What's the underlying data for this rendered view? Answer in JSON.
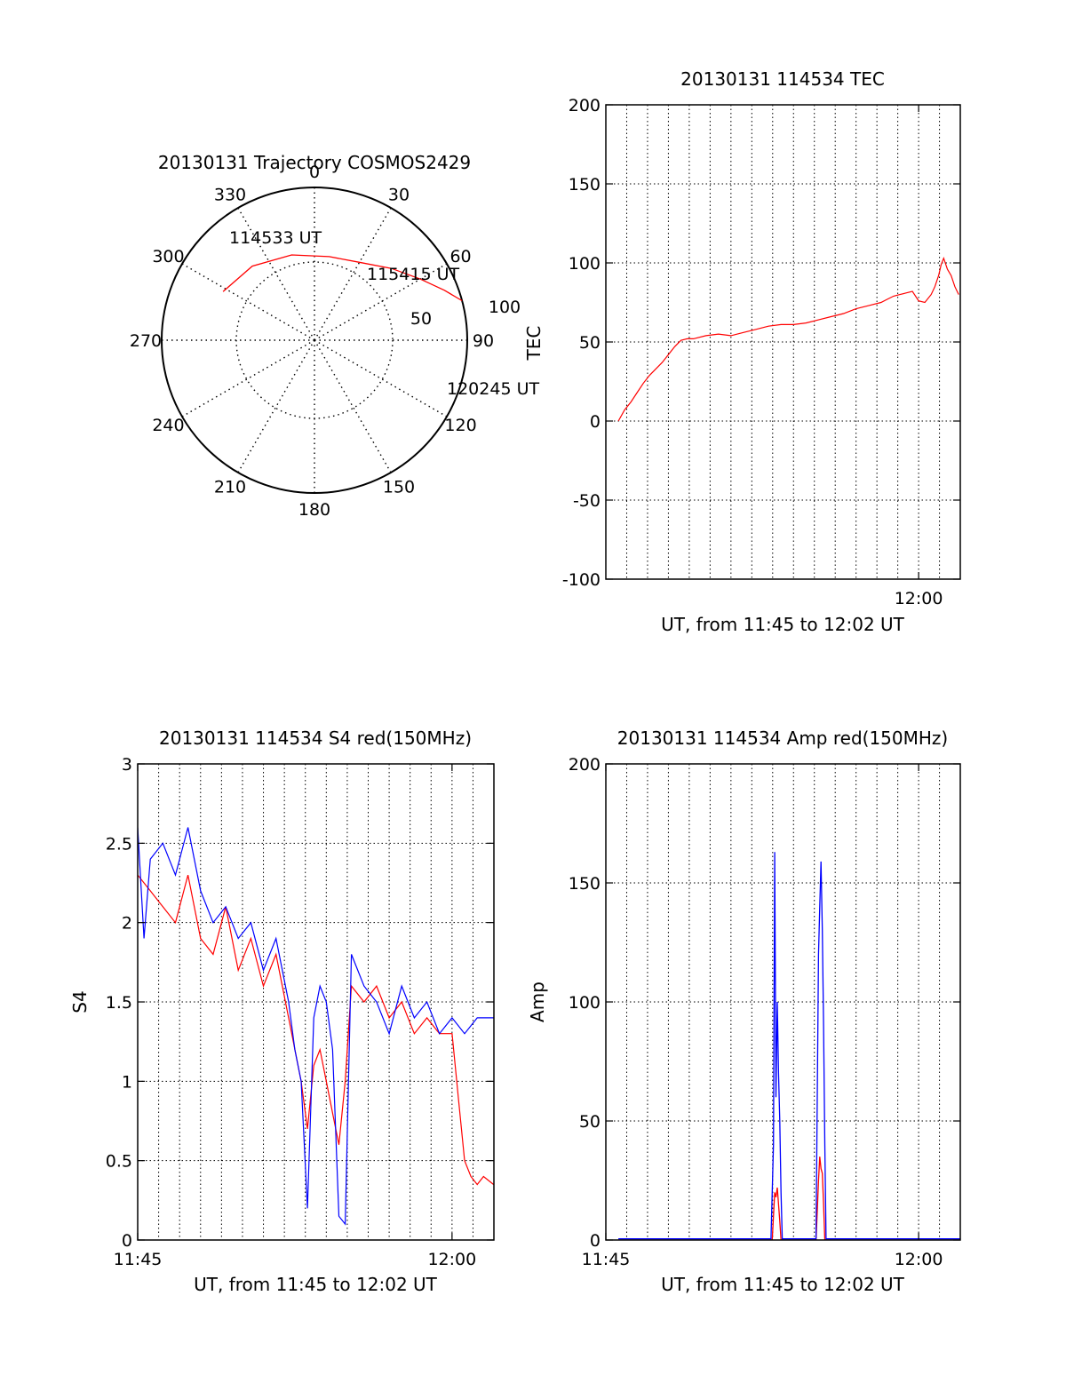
{
  "figure": {
    "colors": {
      "red": "#ff0000",
      "blue": "#0000ff",
      "axis": "#000000",
      "grid": "#000000"
    }
  },
  "chart_data": [
    {
      "type": "polar",
      "title": "20130131 Trajectory COSMOS2429",
      "azimuth_labels": [
        "0",
        "30",
        "60",
        "90",
        "120",
        "150",
        "180",
        "210",
        "240",
        "270",
        "300",
        "330"
      ],
      "radial_labels": [
        "50",
        "100"
      ],
      "radial_ticks_elevation": [
        50,
        100
      ],
      "grid": true,
      "trajectory": {
        "color": "red",
        "points_az_el": [
          [
            -62,
            29
          ],
          [
            -40,
            33
          ],
          [
            -15,
            38
          ],
          [
            10,
            40
          ],
          [
            30,
            37
          ],
          [
            47,
            28
          ],
          [
            60,
            18
          ],
          [
            69,
            8
          ],
          [
            75,
            0
          ]
        ]
      },
      "annotations": [
        {
          "text": "114533 UT",
          "az": -62,
          "el": 29
        },
        {
          "text": "115415 UT",
          "az": 28,
          "el": 36
        },
        {
          "text": "120245 UT",
          "az": 75,
          "el": 0
        }
      ]
    },
    {
      "type": "line",
      "title": "20130131 114534 TEC",
      "xlabel": "UT, from 11:45 to 12:02 UT",
      "ylabel": "TEC",
      "xlim": [
        11.75,
        12.0333
      ],
      "ylim": [
        -100,
        200
      ],
      "yticks": [
        "-100",
        "-50",
        "0",
        "50",
        "100",
        "150",
        "200"
      ],
      "xticks": [
        {
          "value": 12.0,
          "label": "12:00"
        }
      ],
      "grid": true,
      "series": [
        {
          "color": "red",
          "x": [
            11.76,
            11.765,
            11.77,
            11.775,
            11.78,
            11.785,
            11.79,
            11.795,
            11.8,
            11.805,
            11.81,
            11.815,
            11.82,
            11.83,
            11.84,
            11.85,
            11.86,
            11.87,
            11.88,
            11.89,
            11.9,
            11.91,
            11.92,
            11.93,
            11.94,
            11.95,
            11.96,
            11.97,
            11.975,
            11.98,
            11.985,
            11.99,
            11.995,
            12.0,
            12.005,
            12.01,
            12.013,
            12.016,
            12.018,
            12.02,
            12.023,
            12.026,
            12.029,
            12.032
          ],
          "y": [
            0,
            7,
            12,
            18,
            24,
            29,
            33,
            37,
            42,
            47,
            51,
            52,
            52,
            54,
            55,
            54,
            56,
            58,
            60,
            61,
            61,
            62,
            64,
            66,
            68,
            71,
            73,
            75,
            77,
            79,
            80,
            81,
            82,
            76,
            75,
            80,
            85,
            92,
            99,
            103,
            96,
            92,
            85,
            80
          ]
        }
      ]
    },
    {
      "type": "line",
      "title": "20130131 114534 S4 red(150MHz)",
      "xlabel": "UT, from 11:45 to 12:02 UT",
      "ylabel": "S4",
      "xlim": [
        11.75,
        12.0333
      ],
      "ylim": [
        0,
        3
      ],
      "yticks": [
        "0",
        "0.5",
        "1",
        "1.5",
        "2",
        "2.5",
        "3"
      ],
      "xticks": [
        {
          "value": 11.75,
          "label": "11:45"
        },
        {
          "value": 12.0,
          "label": "12:00"
        }
      ],
      "grid": true,
      "series": [
        {
          "color": "red",
          "x": [
            11.75,
            11.76,
            11.77,
            11.78,
            11.79,
            11.8,
            11.81,
            11.82,
            11.83,
            11.84,
            11.85,
            11.86,
            11.87,
            11.88,
            11.885,
            11.89,
            11.895,
            11.9,
            11.905,
            11.91,
            11.915,
            11.92,
            11.93,
            11.94,
            11.95,
            11.96,
            11.97,
            11.98,
            11.99,
            12.0,
            12.005,
            12.01,
            12.015,
            12.02,
            12.025,
            12.033
          ],
          "y": [
            2.3,
            2.2,
            2.1,
            2.0,
            2.3,
            1.9,
            1.8,
            2.1,
            1.7,
            1.9,
            1.6,
            1.8,
            1.4,
            1.0,
            0.7,
            1.1,
            1.2,
            1.0,
            0.8,
            0.6,
            1.0,
            1.6,
            1.5,
            1.6,
            1.4,
            1.5,
            1.3,
            1.4,
            1.3,
            1.3,
            0.9,
            0.5,
            0.4,
            0.35,
            0.4,
            0.35
          ]
        },
        {
          "color": "blue",
          "x": [
            11.75,
            11.755,
            11.76,
            11.77,
            11.78,
            11.79,
            11.8,
            11.81,
            11.82,
            11.83,
            11.84,
            11.85,
            11.86,
            11.87,
            11.875,
            11.88,
            11.885,
            11.89,
            11.895,
            11.9,
            11.905,
            11.91,
            11.915,
            11.92,
            11.93,
            11.94,
            11.95,
            11.96,
            11.97,
            11.98,
            11.99,
            12.0,
            12.01,
            12.02,
            12.033
          ],
          "y": [
            2.6,
            1.9,
            2.4,
            2.5,
            2.3,
            2.6,
            2.2,
            2.0,
            2.1,
            1.9,
            2.0,
            1.7,
            1.9,
            1.5,
            1.2,
            1.0,
            0.2,
            1.4,
            1.6,
            1.5,
            1.2,
            0.15,
            0.1,
            1.8,
            1.6,
            1.5,
            1.3,
            1.6,
            1.4,
            1.5,
            1.3,
            1.4,
            1.3,
            1.4,
            1.4
          ]
        }
      ]
    },
    {
      "type": "line",
      "title": "20130131 114534 Amp red(150MHz)",
      "xlabel": "UT, from 11:45 to 12:02 UT",
      "ylabel": "Amp",
      "xlim": [
        11.75,
        12.0333
      ],
      "ylim": [
        0,
        200
      ],
      "yticks": [
        "0",
        "50",
        "100",
        "150",
        "200"
      ],
      "xticks": [
        {
          "value": 11.75,
          "label": "11:45"
        },
        {
          "value": 12.0,
          "label": "12:00"
        }
      ],
      "grid": true,
      "series": [
        {
          "color": "red",
          "x": [
            11.76,
            11.883,
            11.884,
            11.885,
            11.886,
            11.887,
            11.888,
            11.889,
            11.89,
            11.918,
            11.919,
            11.92,
            11.921,
            11.922,
            11.923,
            11.924,
            11.925,
            12.033
          ],
          "y": [
            0,
            0,
            10,
            20,
            18,
            22,
            15,
            8,
            0,
            0,
            12,
            25,
            35,
            30,
            28,
            15,
            0,
            0
          ]
        },
        {
          "color": "blue",
          "x": [
            11.76,
            11.882,
            11.884,
            11.885,
            11.886,
            11.887,
            11.888,
            11.889,
            11.89,
            11.891,
            11.918,
            11.919,
            11.92,
            11.921,
            11.922,
            11.923,
            11.924,
            11.925,
            11.926,
            12.033
          ],
          "y": [
            0.5,
            0.5,
            40,
            163,
            60,
            100,
            70,
            50,
            20,
            0.5,
            0.5,
            60,
            120,
            140,
            159,
            130,
            90,
            40,
            0.5,
            0.5
          ]
        }
      ]
    }
  ]
}
